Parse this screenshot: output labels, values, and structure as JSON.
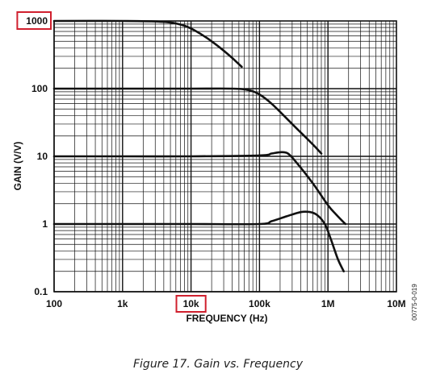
{
  "chart_data": {
    "type": "line",
    "title": "",
    "caption": "Figure 17. Gain vs. Frequency",
    "xlabel": "FREQUENCY (Hz)",
    "ylabel": "GAIN (V/V)",
    "x_scale": "log",
    "y_scale": "log",
    "xlim": [
      100,
      10000000
    ],
    "ylim": [
      0.1,
      1000
    ],
    "x_ticks": [
      100,
      1000,
      10000,
      100000,
      1000000,
      10000000
    ],
    "x_tick_labels": [
      "100",
      "1k",
      "10k",
      "100k",
      "1M",
      "10M"
    ],
    "y_ticks": [
      0.1,
      1,
      10,
      100,
      1000
    ],
    "y_tick_labels": [
      "0.1",
      "1",
      "10",
      "100",
      "1000"
    ],
    "grid": true,
    "highlighted_labels": [
      "1000",
      "10k"
    ],
    "side_code": "00775-0-019",
    "series": [
      {
        "x": [
          100,
          1000,
          2500,
          5000,
          8000,
          12000,
          20000,
          35000,
          55000
        ],
        "y": [
          1000,
          1000,
          990,
          950,
          850,
          700,
          500,
          320,
          210
        ]
      },
      {
        "x": [
          100,
          1000,
          10000,
          40000,
          70000,
          100000,
          150000,
          300000,
          600000,
          800000
        ],
        "y": [
          100,
          100,
          100,
          100,
          95,
          82,
          60,
          30,
          15,
          11
        ]
      },
      {
        "x": [
          100,
          1000,
          10000,
          100000,
          150000,
          200000,
          260000,
          350000,
          600000,
          1000000,
          1300000,
          1800000
        ],
        "y": [
          10,
          10,
          10,
          10.3,
          11,
          11.5,
          11,
          8,
          4,
          1.9,
          1.4,
          1
        ]
      },
      {
        "x": [
          100,
          1000,
          10000,
          100000,
          150000,
          250000,
          400000,
          550000,
          700000,
          900000,
          1100000,
          1400000,
          1700000
        ],
        "y": [
          1,
          1,
          1,
          1,
          1.1,
          1.3,
          1.5,
          1.5,
          1.35,
          1,
          0.6,
          0.3,
          0.2
        ]
      }
    ]
  }
}
